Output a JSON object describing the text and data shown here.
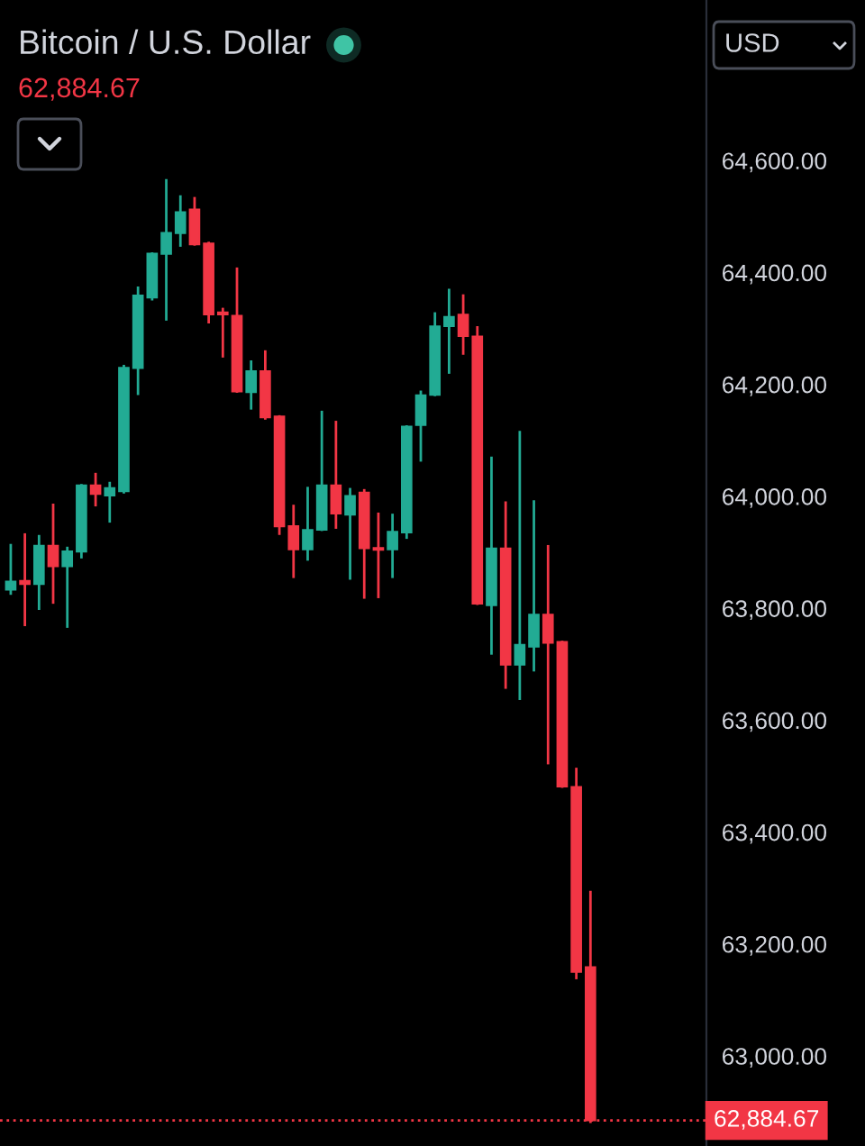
{
  "chart_data": {
    "type": "candlestick",
    "title": "Bitcoin / U.S. Dollar",
    "subtitle": "62,884.67",
    "annotations": [
      "USD"
    ],
    "categories": [
      null,
      null,
      null,
      null,
      null,
      null,
      null,
      null,
      null,
      null,
      null,
      null,
      null,
      null,
      null,
      null,
      null,
      null,
      null,
      null,
      null,
      null,
      null,
      null,
      null,
      null,
      null,
      null,
      null,
      null,
      null,
      null,
      null,
      null,
      null,
      null,
      null,
      null,
      null,
      null,
      null,
      null
    ],
    "ohlc": [
      [
        63833,
        63915,
        63824,
        63848
      ],
      [
        63849,
        63934,
        63768,
        63843
      ],
      [
        63843,
        63931,
        63797,
        63912
      ],
      [
        63912,
        63987,
        63808,
        63875
      ],
      [
        63875,
        63910,
        63765,
        63902
      ],
      [
        63901,
        64022,
        63889,
        64020
      ],
      [
        64020,
        64042,
        63982,
        64004
      ],
      [
        64001,
        64026,
        63953,
        64015
      ],
      [
        64009,
        64235,
        64005,
        64230
      ],
      [
        64229,
        64375,
        64181,
        64359
      ],
      [
        64355,
        64436,
        64350,
        64434
      ],
      [
        64433,
        64567,
        64314,
        64471
      ],
      [
        64470,
        64538,
        64446,
        64508
      ],
      [
        64513,
        64535,
        64448,
        64450
      ],
      [
        64452,
        64455,
        64309,
        64325
      ],
      [
        64329,
        64337,
        64248,
        64325
      ],
      [
        64323,
        64409,
        64185,
        64187
      ],
      [
        64186,
        64243,
        64155,
        64224
      ],
      [
        64224,
        64261,
        64137,
        64141
      ],
      [
        64143,
        64145,
        63931,
        63946
      ],
      [
        63947,
        63985,
        63854,
        63905
      ],
      [
        63905,
        64017,
        63885,
        63940
      ],
      [
        63940,
        64153,
        63938,
        64020
      ],
      [
        64020,
        64135,
        63942,
        63969
      ],
      [
        63967,
        64015,
        63851,
        64001
      ],
      [
        64007,
        64013,
        63817,
        63907
      ],
      [
        63908,
        63971,
        63818,
        63904
      ],
      [
        63905,
        63969,
        63854,
        63937
      ],
      [
        63935,
        64127,
        63924,
        64125
      ],
      [
        64127,
        64189,
        64062,
        64181
      ],
      [
        64181,
        64329,
        64179,
        64304
      ],
      [
        64304,
        64371,
        64219,
        64321
      ],
      [
        64325,
        64361,
        64253,
        64286
      ],
      [
        64286,
        64304,
        63806,
        63808
      ],
      [
        63805,
        64071,
        63717,
        63907
      ],
      [
        63907,
        63991,
        63656,
        63699
      ],
      [
        63699,
        64117,
        63636,
        63735
      ],
      [
        63731,
        63993,
        63687,
        63789
      ],
      [
        63789,
        63913,
        63521,
        63738
      ],
      [
        63740,
        63742,
        63479,
        63481
      ],
      [
        63481,
        63515,
        63137,
        63150
      ],
      [
        63159,
        63295,
        62880,
        62884.67
      ]
    ],
    "colors": [
      "#22ab94",
      "#f23645",
      "#22ab94",
      "#f23645",
      "#22ab94",
      "#22ab94",
      "#f23645",
      "#22ab94",
      "#22ab94",
      "#22ab94",
      "#22ab94",
      "#22ab94",
      "#22ab94",
      "#f23645",
      "#f23645",
      "#f23645",
      "#f23645",
      "#22ab94",
      "#f23645",
      "#f23645",
      "#f23645",
      "#22ab94",
      "#22ab94",
      "#f23645",
      "#22ab94",
      "#f23645",
      "#f23645",
      "#22ab94",
      "#22ab94",
      "#22ab94",
      "#22ab94",
      "#22ab94",
      "#f23645",
      "#f23645",
      "#22ab94",
      "#f23645",
      "#22ab94",
      "#22ab94",
      "#f23645",
      "#f23645",
      "#f23645",
      "#f23645"
    ],
    "ylim": [
      62839,
      64887
    ],
    "yticks": [
      {
        "value": 63000,
        "label": "63,000.00"
      },
      {
        "value": 63200,
        "label": "63,200.00"
      },
      {
        "value": 63400,
        "label": "63,400.00"
      },
      {
        "value": 63600,
        "label": "63,600.00"
      },
      {
        "value": 63800,
        "label": "63,800.00"
      },
      {
        "value": 64000,
        "label": "64,000.00"
      },
      {
        "value": 64200,
        "label": "64,200.00"
      },
      {
        "value": 64400,
        "label": "64,400.00"
      },
      {
        "value": 64600,
        "label": "64,600.00"
      }
    ],
    "tick_labels": "y",
    "ref_lines": [
      {
        "axis": "y",
        "value": 62884.67,
        "label": "62,884.67",
        "color": "#f23645",
        "line_style": "dotted"
      }
    ]
  }
}
